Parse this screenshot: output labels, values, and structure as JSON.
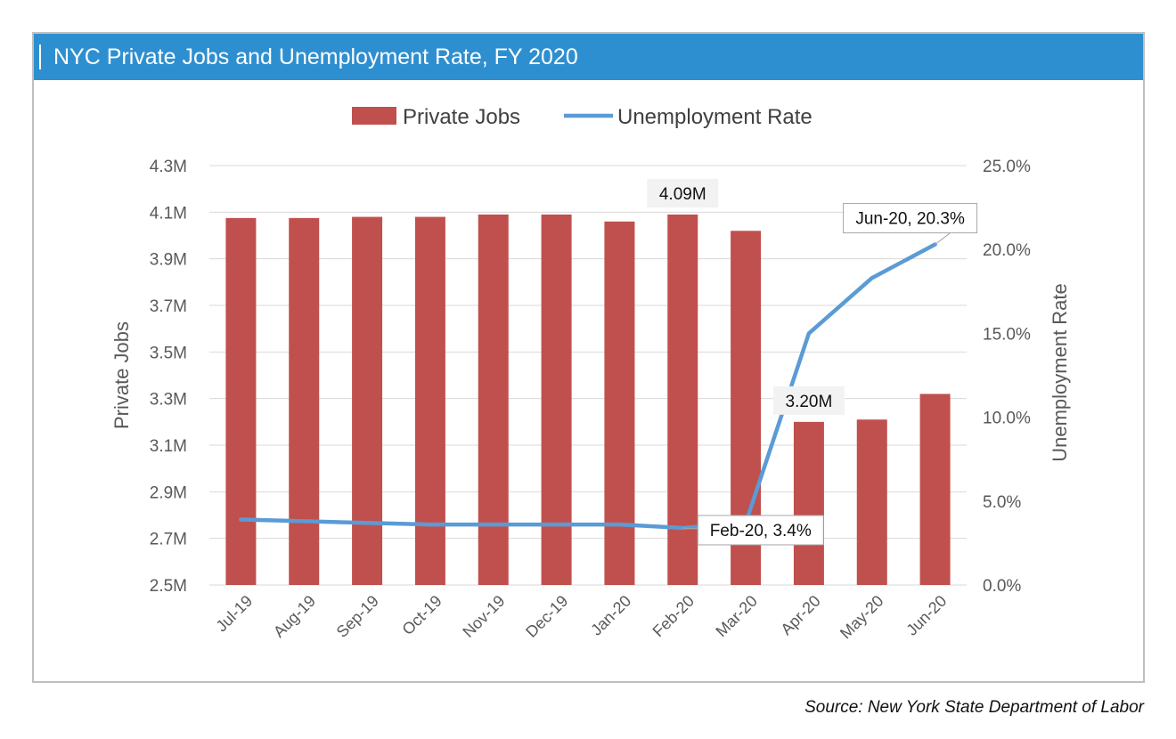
{
  "header": {
    "title": "NYC Private Jobs and Unemployment Rate, FY 2020"
  },
  "source": "Source: New York State Department of Labor",
  "colors": {
    "title_bar": "#2e8fd0",
    "bars": "#c0504d",
    "line": "#5b9bd5",
    "axis_text": "#595959",
    "grid": "#d9d9d9"
  },
  "chart_data": {
    "type": "bar",
    "categories": [
      "Jul-19",
      "Aug-19",
      "Sep-19",
      "Oct-19",
      "Nov-19",
      "Dec-19",
      "Jan-20",
      "Feb-20",
      "Mar-20",
      "Apr-20",
      "May-20",
      "Jun-20"
    ],
    "series": [
      {
        "name": "Private Jobs",
        "type": "bar",
        "axis": "left",
        "values": [
          4.075,
          4.075,
          4.08,
          4.08,
          4.09,
          4.09,
          4.06,
          4.09,
          4.02,
          3.2,
          3.21,
          3.32
        ]
      },
      {
        "name": "Unemployment Rate",
        "type": "line",
        "axis": "right",
        "values": [
          3.9,
          3.8,
          3.7,
          3.6,
          3.6,
          3.6,
          3.6,
          3.4,
          3.7,
          15.0,
          18.3,
          20.3
        ]
      }
    ],
    "ylabel_left": "Private Jobs",
    "ylabel_right": "Unemployment Rate",
    "ylim_left": [
      2.5,
      4.3
    ],
    "yticks_left": [
      "4.3M",
      "4.1M",
      "3.9M",
      "3.7M",
      "3.5M",
      "3.3M",
      "3.1M",
      "2.9M",
      "2.7M",
      "2.5M"
    ],
    "ylim_right": [
      0,
      25
    ],
    "yticks_right": [
      "25.0%",
      "20.0%",
      "15.0%",
      "10.0%",
      "5.0%",
      "0.0%"
    ],
    "legend_position": "top-center",
    "grid": true,
    "annotations": [
      {
        "series": "Private Jobs",
        "index": 7,
        "text": "4.09M",
        "style": "shaded"
      },
      {
        "series": "Private Jobs",
        "index": 9,
        "text": "3.20M",
        "style": "shaded"
      },
      {
        "series": "Unemployment Rate",
        "index": 11,
        "text": "Jun-20, 20.3%",
        "style": "callout"
      },
      {
        "series": "Unemployment Rate",
        "index": 7,
        "text": "Feb-20, 3.4%",
        "style": "callout"
      }
    ]
  }
}
